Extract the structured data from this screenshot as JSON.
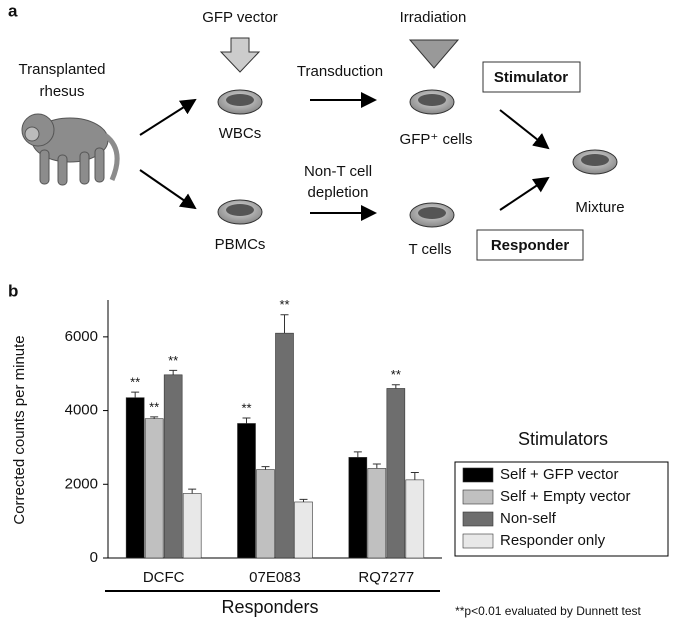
{
  "panel_a": {
    "label": "a",
    "source": [
      "Transplanted",
      "rhesus"
    ],
    "gfp_vector": "GFP vector",
    "irradiation": "Irradiation",
    "transduction": "Transduction",
    "depletion": [
      "Non-T cell",
      "depletion"
    ],
    "wbcs": "WBCs",
    "pbmcs": "PBMCs",
    "gfp_cells": "GFP⁺ cells",
    "t_cells": "T cells",
    "stimulator": "Stimulator",
    "responder": "Responder",
    "mixture": "Mixture"
  },
  "chart_data": {
    "type": "bar",
    "panel_label": "b",
    "y_label": "Corrected counts per minute",
    "x_label": "Responders",
    "legend_title": "Stimulators",
    "footnote": "**p<0.01 evaluated by Dunnett test",
    "categories": [
      "DCFC",
      "07E083",
      "RQ7277"
    ],
    "ylim": [
      0,
      7000
    ],
    "yticks": [
      0,
      2000,
      4000,
      6000
    ],
    "legend_position": "right",
    "series": [
      {
        "name": "Self + GFP vector",
        "color": "#000000",
        "values": [
          4350,
          3650,
          2730
        ],
        "errors": [
          150,
          150,
          150
        ],
        "significance": [
          "**",
          "**",
          null
        ]
      },
      {
        "name": "Self + Empty vector",
        "color": "#c0c0c0",
        "values": [
          3780,
          2400,
          2430
        ],
        "errors": [
          50,
          80,
          120
        ],
        "significance": [
          "**",
          null,
          null
        ]
      },
      {
        "name": "Non-self",
        "color": "#6e6e6e",
        "values": [
          4970,
          6100,
          4600
        ],
        "errors": [
          120,
          500,
          100
        ],
        "significance": [
          "**",
          "**",
          "**"
        ]
      },
      {
        "name": "Responder only",
        "color": "#e8e8e8",
        "values": [
          1750,
          1520,
          2120
        ],
        "errors": [
          120,
          70,
          200
        ],
        "significance": [
          null,
          null,
          null
        ]
      }
    ]
  }
}
